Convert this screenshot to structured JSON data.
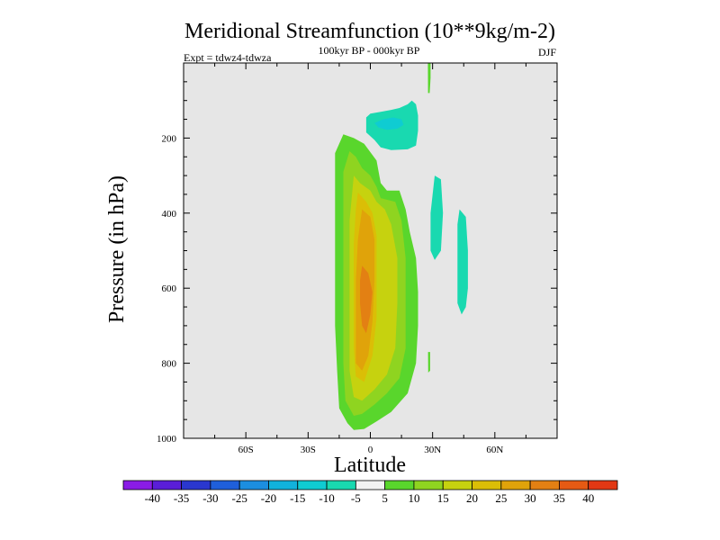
{
  "chart_data": {
    "type": "heatmap",
    "title": "Meridional Streamfunction (10**9kg/m-2)",
    "subtitle": "100kyr BP - 000kyr BP",
    "left_label": "Expt = tdwz4-tdwza",
    "right_label": "DJF",
    "xlabel": "Latitude",
    "ylabel": "Pressure (in hPa)",
    "xlim": [
      -90,
      90
    ],
    "ylim": [
      1000,
      0
    ],
    "y_inverted": true,
    "x_ticks": [
      {
        "value": -60,
        "label": "60S"
      },
      {
        "value": -30,
        "label": "30S"
      },
      {
        "value": 0,
        "label": "0"
      },
      {
        "value": 30,
        "label": "30N"
      },
      {
        "value": 60,
        "label": "60N"
      }
    ],
    "y_ticks": [
      {
        "value": 200,
        "label": "200"
      },
      {
        "value": 400,
        "label": "400"
      },
      {
        "value": 600,
        "label": "600"
      },
      {
        "value": 800,
        "label": "800"
      },
      {
        "value": 1000,
        "label": "1000"
      }
    ],
    "colorbar": {
      "labels": [
        "-40",
        "-35",
        "-30",
        "-25",
        "-20",
        "-15",
        "-10",
        "-5",
        "5",
        "10",
        "15",
        "20",
        "25",
        "30",
        "35",
        "40"
      ],
      "colors": [
        "#8a1ce6",
        "#5a1ed8",
        "#2a37cf",
        "#1f5fdb",
        "#1c8ee0",
        "#11b2dc",
        "#0fccd2",
        "#19d9b0",
        "#f2f2f2",
        "#59d62c",
        "#8fd420",
        "#c6d20f",
        "#dbbe06",
        "#e0a30a",
        "#e38013",
        "#e55a14",
        "#e23814"
      ]
    },
    "background": "#e6e6e6",
    "regions": [
      {
        "level": "5 to 10",
        "color": "#59d62c",
        "points": [
          [
            -13,
            190
          ],
          [
            -8,
            200
          ],
          [
            -3,
            215
          ],
          [
            3,
            260
          ],
          [
            5,
            320
          ],
          [
            8,
            340
          ],
          [
            14,
            340
          ],
          [
            17,
            390
          ],
          [
            19,
            450
          ],
          [
            22,
            520
          ],
          [
            23,
            610
          ],
          [
            23,
            700
          ],
          [
            22,
            800
          ],
          [
            18,
            880
          ],
          [
            10,
            930
          ],
          [
            3,
            955
          ],
          [
            -3,
            975
          ],
          [
            -8,
            978
          ],
          [
            -11,
            960
          ],
          [
            -15,
            920
          ],
          [
            -16,
            820
          ],
          [
            -17,
            700
          ],
          [
            -17,
            560
          ],
          [
            -17,
            420
          ],
          [
            -17,
            300
          ],
          [
            -17,
            240
          ]
        ]
      },
      {
        "level": "10 to 15",
        "color": "#8fd420",
        "points": [
          [
            -10,
            235
          ],
          [
            -7,
            250
          ],
          [
            -4,
            280
          ],
          [
            0,
            300
          ],
          [
            3,
            330
          ],
          [
            5,
            360
          ],
          [
            12,
            370
          ],
          [
            15,
            420
          ],
          [
            17,
            520
          ],
          [
            17,
            640
          ],
          [
            17,
            760
          ],
          [
            14,
            840
          ],
          [
            8,
            880
          ],
          [
            2,
            910
          ],
          [
            -4,
            935
          ],
          [
            -8,
            940
          ],
          [
            -12,
            900
          ],
          [
            -13,
            800
          ],
          [
            -13,
            650
          ],
          [
            -13,
            500
          ],
          [
            -13,
            380
          ],
          [
            -13,
            290
          ]
        ]
      },
      {
        "level": "15 to 20",
        "color": "#c6d20f",
        "points": [
          [
            -8,
            300
          ],
          [
            -5,
            320
          ],
          [
            0,
            340
          ],
          [
            3,
            370
          ],
          [
            7,
            390
          ],
          [
            10,
            430
          ],
          [
            13,
            520
          ],
          [
            13,
            640
          ],
          [
            12,
            760
          ],
          [
            8,
            830
          ],
          [
            2,
            870
          ],
          [
            -4,
            900
          ],
          [
            -8,
            890
          ],
          [
            -10,
            820
          ],
          [
            -10,
            680
          ],
          [
            -10,
            540
          ],
          [
            -10,
            420
          ]
        ]
      },
      {
        "level": "20 to 25",
        "color": "#dbbe06",
        "points": [
          [
            -6,
            345
          ],
          [
            -2,
            370
          ],
          [
            1,
            400
          ],
          [
            3,
            460
          ],
          [
            3,
            560
          ],
          [
            3,
            680
          ],
          [
            1,
            780
          ],
          [
            -3,
            850
          ],
          [
            -7,
            835
          ],
          [
            -8,
            760
          ],
          [
            -8,
            620
          ],
          [
            -8,
            480
          ],
          [
            -7,
            390
          ]
        ]
      },
      {
        "level": "25 to 30",
        "color": "#e0a30a",
        "points": [
          [
            -4,
            390
          ],
          [
            0,
            410
          ],
          [
            2,
            470
          ],
          [
            2,
            580
          ],
          [
            1,
            690
          ],
          [
            -1,
            780
          ],
          [
            -4,
            820
          ],
          [
            -7,
            800
          ],
          [
            -7,
            700
          ],
          [
            -7,
            580
          ],
          [
            -6,
            470
          ]
        ]
      },
      {
        "level": "30 to 35",
        "color": "#e38013",
        "points": [
          [
            -4,
            540
          ],
          [
            -1,
            560
          ],
          [
            1,
            610
          ],
          [
            0,
            670
          ],
          [
            -2,
            720
          ],
          [
            -4,
            700
          ],
          [
            -5,
            640
          ],
          [
            -5,
            580
          ]
        ]
      },
      {
        "level": "-5 to -10",
        "color": "#19d9b0",
        "points": [
          [
            -2,
            185
          ],
          [
            -2,
            145
          ],
          [
            0,
            135
          ],
          [
            5,
            130
          ],
          [
            10,
            125
          ],
          [
            14,
            120
          ],
          [
            18,
            110
          ],
          [
            20,
            100
          ],
          [
            22,
            110
          ],
          [
            23,
            140
          ],
          [
            23,
            180
          ],
          [
            22,
            220
          ],
          [
            18,
            230
          ],
          [
            10,
            232
          ],
          [
            5,
            225
          ],
          [
            2,
            205
          ]
        ]
      },
      {
        "level": "-10 to -15",
        "color": "#0fccd2",
        "points": [
          [
            2,
            160
          ],
          [
            6,
            150
          ],
          [
            11,
            145
          ],
          [
            15,
            150
          ],
          [
            16,
            165
          ],
          [
            13,
            175
          ],
          [
            8,
            178
          ],
          [
            4,
            172
          ]
        ]
      },
      {
        "level": "-5 to -10",
        "color": "#19d9b0",
        "points": [
          [
            31,
            300
          ],
          [
            34,
            310
          ],
          [
            35,
            400
          ],
          [
            34,
            500
          ],
          [
            31,
            525
          ],
          [
            29,
            500
          ],
          [
            29,
            400
          ]
        ]
      },
      {
        "level": "-5 to -10",
        "color": "#19d9b0",
        "points": [
          [
            43,
            390
          ],
          [
            46,
            410
          ],
          [
            47,
            500
          ],
          [
            47,
            600
          ],
          [
            46,
            650
          ],
          [
            44,
            670
          ],
          [
            42,
            640
          ],
          [
            42,
            520
          ],
          [
            42,
            430
          ]
        ]
      },
      {
        "level": "5 to 10",
        "color": "#59d62c",
        "points": [
          [
            27.7,
            -10
          ],
          [
            29,
            -10
          ],
          [
            29,
            40
          ],
          [
            28.6,
            80
          ],
          [
            27.8,
            80
          ]
        ]
      },
      {
        "level": "5 to 10",
        "color": "#59d62c",
        "points": [
          [
            27.8,
            770
          ],
          [
            28.8,
            770
          ],
          [
            28.8,
            820
          ],
          [
            27.9,
            825
          ]
        ]
      }
    ]
  }
}
